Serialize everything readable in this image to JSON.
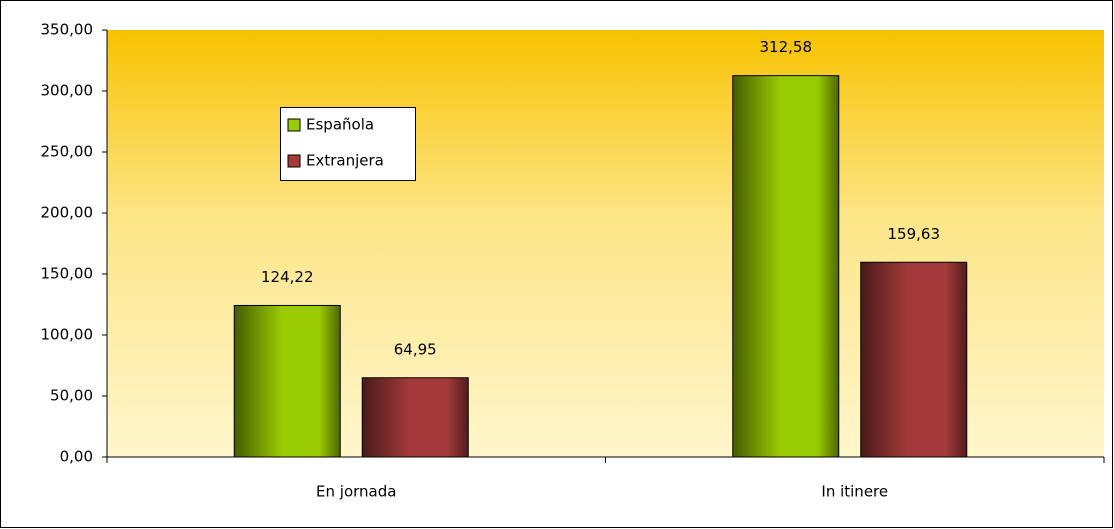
{
  "chart_data": {
    "type": "bar",
    "categories": [
      "En jornada",
      "In itinere"
    ],
    "series": [
      {
        "name": "Española",
        "color": "#99cc00",
        "values": [
          124.22,
          312.58
        ],
        "value_labels": [
          "124,22",
          "312,58"
        ]
      },
      {
        "name": "Extranjera",
        "color": "#a33a3a",
        "values": [
          64.95,
          159.63
        ],
        "value_labels": [
          "64,95",
          "159,63"
        ]
      }
    ],
    "ylim": [
      0,
      350
    ],
    "yticks": [
      {
        "value": 0,
        "label": "0,00"
      },
      {
        "value": 50,
        "label": "50,00"
      },
      {
        "value": 100,
        "label": "100,00"
      },
      {
        "value": 150,
        "label": "150,00"
      },
      {
        "value": 200,
        "label": "200,00"
      },
      {
        "value": 250,
        "label": "250,00"
      },
      {
        "value": 300,
        "label": "300,00"
      },
      {
        "value": 350,
        "label": "350,00"
      }
    ],
    "grid": false,
    "legend": "upper left"
  }
}
